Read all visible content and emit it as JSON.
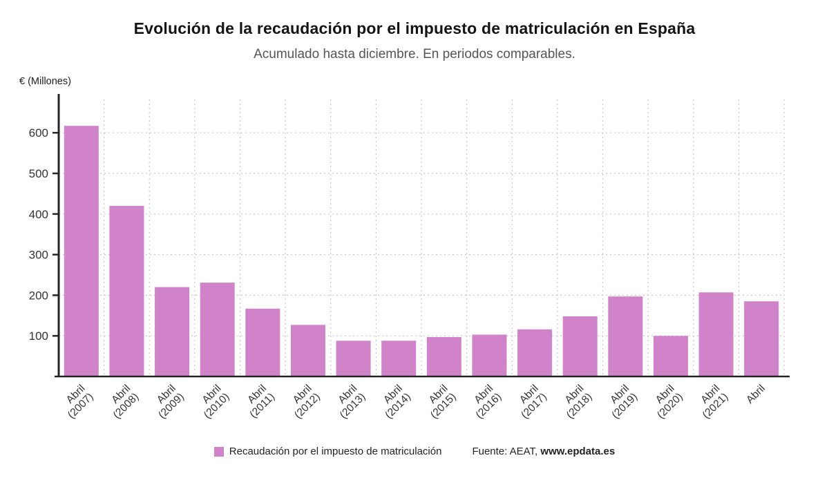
{
  "chart_data": {
    "type": "bar",
    "title": "Evolución de la recaudación por el impuesto de matriculación en España",
    "subtitle": "Acumulado hasta diciembre. En periodos comparables.",
    "ylabel": "€ (Millones)",
    "xlabel": "",
    "ylim": [
      0,
      694
    ],
    "yticks": [
      100,
      200,
      300,
      400,
      500,
      600
    ],
    "grid": true,
    "legend_position": "bottom",
    "bar_color": "#d083c8",
    "series_name": "Recaudación por el impuesto de matriculación",
    "categories": [
      {
        "month": "Abril",
        "year": "(2007)"
      },
      {
        "month": "Abril",
        "year": "(2008)"
      },
      {
        "month": "Abril",
        "year": "(2009)"
      },
      {
        "month": "Abril",
        "year": "(2010)"
      },
      {
        "month": "Abril",
        "year": "(2011)"
      },
      {
        "month": "Abril",
        "year": "(2012)"
      },
      {
        "month": "Abril",
        "year": "(2013)"
      },
      {
        "month": "Abril",
        "year": "(2014)"
      },
      {
        "month": "Abril",
        "year": "(2015)"
      },
      {
        "month": "Abril",
        "year": "(2016)"
      },
      {
        "month": "Abril",
        "year": "(2017)"
      },
      {
        "month": "Abril",
        "year": "(2018)"
      },
      {
        "month": "Abril",
        "year": "(2019)"
      },
      {
        "month": "Abril",
        "year": "(2020)"
      },
      {
        "month": "Abril",
        "year": "(2021)"
      },
      {
        "month": "Abril",
        "year": ""
      }
    ],
    "values": [
      617,
      420,
      220,
      231,
      167,
      127,
      88,
      88,
      97,
      103,
      116,
      148,
      197,
      100,
      207,
      185
    ]
  },
  "legend": {
    "label": "Recaudación por el impuesto de matriculación",
    "source_prefix": "Fuente: AEAT,",
    "source_link": "www.epdata.es"
  }
}
